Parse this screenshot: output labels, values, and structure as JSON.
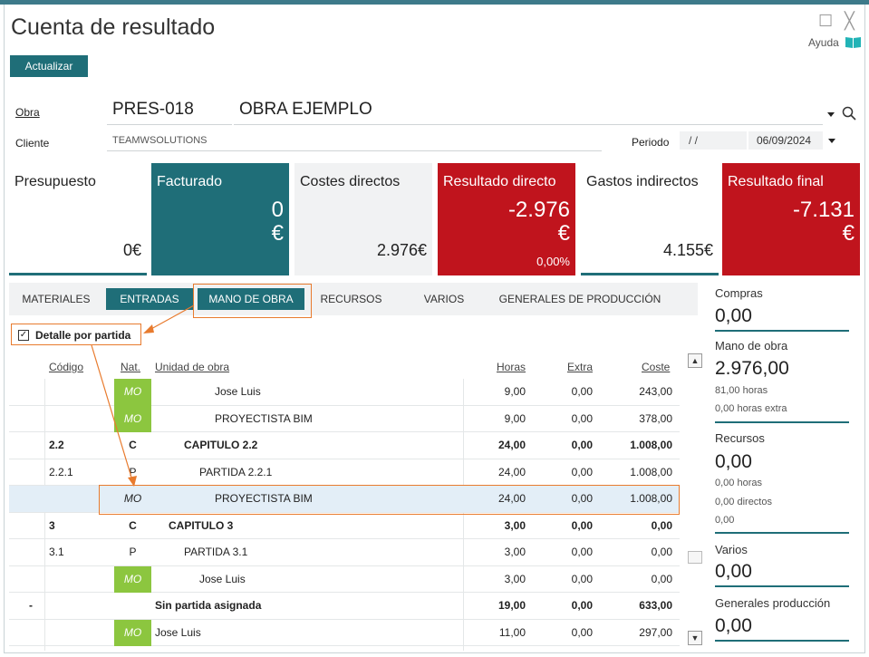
{
  "window": {
    "title": "Cuenta de resultado",
    "help_label": "Ayuda",
    "maximize_glyph": "☐",
    "close_glyph": "╳"
  },
  "toolbar": {
    "refresh_label": "Actualizar"
  },
  "form": {
    "obra_label": "Obra",
    "obra_code": "PRES-018",
    "obra_name": "OBRA EJEMPLO",
    "cliente_label": "Cliente",
    "cliente_value": "TEAMWSOLUTIONS",
    "periodo_label": "Periodo",
    "periodo_from": "/ /",
    "periodo_to": "06/09/2024"
  },
  "cards": {
    "presupuesto": {
      "title": "Presupuesto",
      "value": "0€"
    },
    "facturado": {
      "title": "Facturado",
      "value": "0",
      "currency": "€"
    },
    "costes": {
      "title": "Costes directos",
      "value": "2.976€"
    },
    "resultado_directo": {
      "title": "Resultado directo",
      "value": "-2.976",
      "currency": "€",
      "pct": "0,00%"
    },
    "gastos": {
      "title": "Gastos indirectos",
      "value": "4.155€"
    },
    "resultado_final": {
      "title": "Resultado final",
      "value": "-7.131",
      "currency": "€"
    }
  },
  "tabs": [
    "MATERIALES",
    "ENTRADAS",
    "MANO DE OBRA",
    "RECURSOS",
    "VARIOS",
    "GENERALES DE PRODUCCIÓN"
  ],
  "detail_checkbox": {
    "label": "Detalle por partida",
    "checked": true,
    "glyph": "✓"
  },
  "table": {
    "headers": {
      "codigo": "Código",
      "nat": "Nat.",
      "unidad": "Unidad de obra",
      "horas": "Horas",
      "extra": "Extra",
      "coste": "Coste"
    },
    "rows": [
      {
        "codigo": "",
        "nat": "MO",
        "unidad": "Jose Luis",
        "horas": "9,00",
        "extra": "0,00",
        "coste": "243,00"
      },
      {
        "codigo": "",
        "nat": "MO",
        "unidad": "PROYECTISTA BIM",
        "horas": "9,00",
        "extra": "0,00",
        "coste": "378,00"
      },
      {
        "codigo": "2.2",
        "nat": "C",
        "unidad": "CAPITULO 2.2",
        "horas": "24,00",
        "extra": "0,00",
        "coste": "1.008,00"
      },
      {
        "codigo": "2.2.1",
        "nat": "P",
        "unidad": "PARTIDA 2.2.1",
        "horas": "24,00",
        "extra": "0,00",
        "coste": "1.008,00"
      },
      {
        "codigo": "",
        "nat": "MO",
        "unidad": "PROYECTISTA BIM",
        "horas": "24,00",
        "extra": "0,00",
        "coste": "1.008,00"
      },
      {
        "codigo": "3",
        "nat": "C",
        "unidad": "CAPITULO 3",
        "horas": "3,00",
        "extra": "0,00",
        "coste": "0,00"
      },
      {
        "codigo": "3.1",
        "nat": "P",
        "unidad": "PARTIDA 3.1",
        "horas": "3,00",
        "extra": "0,00",
        "coste": "0,00"
      },
      {
        "codigo": "",
        "nat": "MO",
        "unidad": "Jose Luis",
        "horas": "3,00",
        "extra": "0,00",
        "coste": "0,00"
      },
      {
        "codigo": "-",
        "nat": "",
        "unidad": "Sin partida asignada",
        "horas": "19,00",
        "extra": "0,00",
        "coste": "633,00"
      },
      {
        "codigo": "",
        "nat": "MO",
        "unidad": "Jose Luis",
        "horas": "11,00",
        "extra": "0,00",
        "coste": "297,00"
      }
    ]
  },
  "summary": {
    "compras": {
      "label": "Compras",
      "value": "0,00"
    },
    "mano_obra": {
      "label": "Mano de obra",
      "value": "2.976,00",
      "sub1": "81,00 horas",
      "sub2": "0,00 horas extra"
    },
    "recursos": {
      "label": "Recursos",
      "value": "0,00",
      "sub1": "0,00 horas",
      "sub2": "0,00 directos",
      "sub3": "0,00"
    },
    "varios": {
      "label": "Varios",
      "value": "0,00"
    },
    "generales": {
      "label": "Generales producción",
      "value": "0,00"
    }
  },
  "colors": {
    "teal": "#1f6e78",
    "red": "#c0141d",
    "green": "#8cc63f",
    "orange": "#e87b2e"
  },
  "icons": {
    "search": "search-icon",
    "dropdown": "caret-down-icon",
    "book": "book-icon"
  }
}
